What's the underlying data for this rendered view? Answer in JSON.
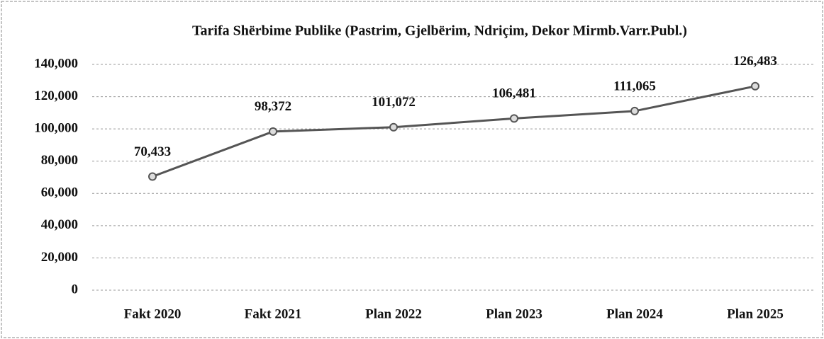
{
  "chart_data": {
    "type": "line",
    "title": "Tarifa Shërbime Publike (Pastrim, Gjelbërim, Ndriçim, Dekor Mirmb.Varr.Publ.)",
    "categories": [
      "Fakt 2020",
      "Fakt 2021",
      "Plan 2022",
      "Plan 2023",
      "Plan 2024",
      "Plan 2025"
    ],
    "values": [
      70433,
      98372,
      101072,
      106481,
      111065,
      126483
    ],
    "value_labels": [
      "70,433",
      "98,372",
      "101,072",
      "106,481",
      "111,065",
      "126,483"
    ],
    "color": "#555555",
    "ylim": [
      0,
      140000
    ],
    "yticks": [
      0,
      {
        "value": 20000,
        "label": "20,000"
      },
      {
        "value": 40000,
        "label": "40,000"
      },
      {
        "value": 60000,
        "label": "60,000"
      },
      {
        "value": 80000,
        "label": "80,000"
      },
      {
        "value": 100000,
        "label": "100,000"
      },
      {
        "value": 120000,
        "label": "120,000"
      },
      {
        "value": 140000,
        "label": "140,000"
      }
    ],
    "grid": true
  }
}
